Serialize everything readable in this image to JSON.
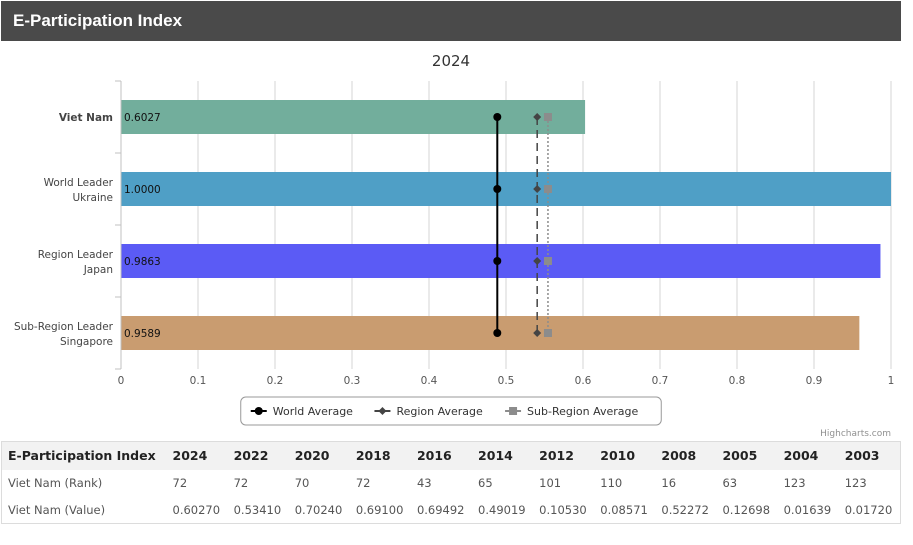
{
  "header": {
    "title": "E-Participation Index"
  },
  "credits": "Highcharts.com",
  "chart_data": {
    "type": "bar",
    "title": "2024",
    "categories": [
      [
        "Viet Nam"
      ],
      [
        "World Leader",
        "Ukraine"
      ],
      [
        "Region Leader",
        "Japan"
      ],
      [
        "Sub-Region Leader",
        "Singapore"
      ]
    ],
    "bold_category": 0,
    "values": [
      0.6027,
      1.0,
      0.9863,
      0.9589
    ],
    "value_labels": [
      "0.6027",
      "1.0000",
      "0.9863",
      "0.9589"
    ],
    "bar_colors": [
      "#72ae9c",
      "#4f9fc6",
      "#5b5bf5",
      "#c99c70"
    ],
    "xlim": [
      0,
      1
    ],
    "xticks": [
      "0",
      "0.1",
      "0.2",
      "0.3",
      "0.4",
      "0.5",
      "0.6",
      "0.7",
      "0.8",
      "0.9",
      "1"
    ],
    "grid": true,
    "legend_position": "bottom-center",
    "series": [
      {
        "name": "World Average",
        "value": 0.4887,
        "color": "#000000",
        "marker": "circle",
        "dash": "solid"
      },
      {
        "name": "Region Average",
        "value": 0.5405,
        "color": "#444444",
        "marker": "diamond",
        "dash": "dash"
      },
      {
        "name": "Sub-Region Average",
        "value": 0.5545,
        "color": "#8c8c8c",
        "marker": "square",
        "dash": "dot"
      }
    ]
  },
  "table": {
    "columns": [
      "E-Participation Index",
      "2024",
      "2022",
      "2020",
      "2018",
      "2016",
      "2014",
      "2012",
      "2010",
      "2008",
      "2005",
      "2004",
      "2003"
    ],
    "rows": [
      [
        "Viet Nam (Rank)",
        "72",
        "72",
        "70",
        "72",
        "43",
        "65",
        "101",
        "110",
        "16",
        "63",
        "123",
        "123"
      ],
      [
        "Viet Nam (Value)",
        "0.60270",
        "0.53410",
        "0.70240",
        "0.69100",
        "0.69492",
        "0.49019",
        "0.10530",
        "0.08571",
        "0.52272",
        "0.12698",
        "0.01639",
        "0.01720"
      ]
    ]
  }
}
